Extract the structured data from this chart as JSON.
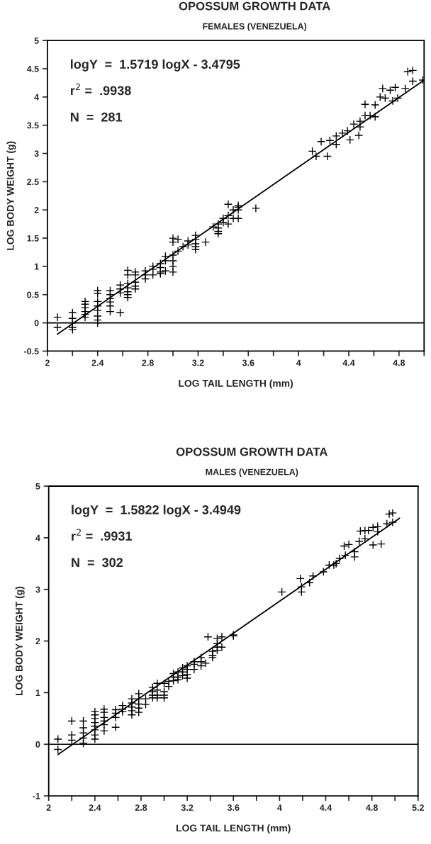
{
  "chart_data": [
    {
      "type": "scatter",
      "title": "OPOSSUM GROWTH DATA",
      "subtitle": "FEMALES (VENEZUELA)",
      "xlabel": "LOG TAIL LENGTH (mm)",
      "ylabel": "LOG BODY WEIGHT (g)",
      "annotations": [
        "logY  =  1.5719 logX - 3.4795",
        "r$^{2}$ =  .9938",
        "N  =  281"
      ],
      "xlim": [
        2,
        5.0
      ],
      "ylim": [
        -0.5,
        5
      ],
      "xticks": [
        2,
        {
          "value": 2.2,
          "label": null
        },
        2.4,
        {
          "value": 2.6,
          "label": null
        },
        2.8,
        {
          "value": 3.0,
          "label": null
        },
        3.2,
        {
          "value": 3.4,
          "label": null
        },
        3.6,
        {
          "value": 3.8,
          "label": null
        },
        4,
        {
          "value": 4.2,
          "label": null
        },
        4.4,
        {
          "value": 4.6,
          "label": null
        },
        4.8,
        {
          "value": 5.0,
          "label": null
        }
      ],
      "yticks": [
        -0.5,
        0,
        0.5,
        1,
        1.5,
        2,
        2.5,
        3,
        3.5,
        4,
        4.5,
        5
      ],
      "grid": false,
      "ref_lines": [
        {
          "axis": "y",
          "value": 0,
          "color": "#000000"
        }
      ],
      "series": [
        {
          "marker": "cross",
          "color": "#000000",
          "x": [
            2.08,
            2.08,
            2.2,
            2.2,
            2.2,
            2.2,
            2.2,
            2.3,
            2.3,
            2.3,
            2.3,
            2.3,
            2.3,
            2.4,
            2.4,
            2.4,
            2.4,
            2.4,
            2.4,
            2.4,
            2.4,
            2.5,
            2.5,
            2.5,
            2.5,
            2.5,
            2.5,
            2.58,
            2.58,
            2.58,
            2.58,
            2.64,
            2.64,
            2.64,
            2.64,
            2.64,
            2.64,
            2.64,
            2.7,
            2.7,
            2.7,
            2.7,
            2.7,
            2.78,
            2.78,
            2.78,
            2.84,
            2.84,
            2.84,
            2.9,
            2.9,
            2.9,
            2.9,
            2.94,
            2.94,
            2.94,
            3.0,
            3.0,
            3.0,
            3.0,
            3.0,
            3.0,
            3.04,
            3.04,
            3.08,
            3.12,
            3.12,
            3.18,
            3.18,
            3.18,
            3.18,
            3.18,
            3.26,
            3.32,
            3.36,
            3.36,
            3.36,
            3.36,
            3.4,
            3.4,
            3.44,
            3.44,
            3.44,
            3.48,
            3.48,
            3.52,
            3.52,
            3.52,
            3.52,
            3.66,
            4.11,
            4.14,
            4.23,
            4.18,
            4.25,
            4.3,
            4.35,
            4.41,
            4.44,
            4.49,
            4.48,
            4.53,
            4.57,
            4.61,
            4.65,
            4.67,
            4.73,
            4.77,
            4.79,
            4.85,
            4.87,
            4.91,
            4.91,
            4.75,
            4.69,
            4.3,
            4.49,
            4.39,
            4.61,
            4.53,
            4.99
          ],
          "values": [
            0.1,
            -0.08,
            0.18,
            0.08,
            0,
            -0.08,
            -0.12,
            0.38,
            0.33,
            0.27,
            0.2,
            0.15,
            0.1,
            0.57,
            0.52,
            0.38,
            0.3,
            0.22,
            0.12,
            0.05,
            0,
            0.57,
            0.5,
            0.43,
            0.37,
            0.3,
            0.2,
            0.67,
            0.6,
            0.53,
            0.18,
            0.93,
            0.85,
            0.7,
            0.62,
            0.55,
            0.5,
            0.45,
            0.9,
            0.85,
            0.72,
            0.65,
            0.6,
            0.92,
            0.85,
            0.78,
            1.0,
            0.95,
            0.85,
            1.05,
            0.98,
            0.9,
            0.87,
            1.18,
            1.1,
            0.92,
            1.5,
            1.43,
            1.2,
            1.1,
            1.0,
            0.9,
            1.48,
            1.27,
            1.35,
            1.45,
            1.38,
            1.55,
            1.48,
            1.4,
            1.35,
            1.3,
            1.43,
            1.7,
            1.75,
            1.68,
            1.62,
            1.58,
            1.85,
            1.78,
            2.1,
            1.9,
            1.75,
            2.0,
            1.85,
            2.08,
            2.05,
            2.0,
            1.85,
            2.03,
            3.04,
            2.95,
            2.95,
            3.21,
            3.23,
            3.31,
            3.36,
            3.24,
            3.52,
            3.47,
            3.32,
            3.87,
            3.67,
            3.65,
            4.0,
            4.15,
            4.12,
            4.17,
            3.98,
            4.15,
            4.45,
            4.47,
            4.28,
            3.93,
            3.98,
            3.16,
            3.57,
            3.4,
            3.86,
            3.67,
            4.3
          ]
        },
        {
          "type": "line",
          "color": "#000000",
          "x": [
            2.08,
            5.0
          ],
          "values": [
            -0.2,
            4.3
          ]
        }
      ]
    },
    {
      "type": "scatter",
      "title": "OPOSSUM GROWTH DATA",
      "subtitle": "MALES (VENEZUELA)",
      "xlabel": "LOG TAIL LENGTH (mm)",
      "ylabel": "LOG BODY WEIGHT (g)",
      "annotations": [
        "logY  =  1.5822 logX - 3.4949",
        "r$^{2}$ =  .9931",
        "N  =  302"
      ],
      "xlim": [
        2,
        5.2
      ],
      "ylim": [
        -1,
        5
      ],
      "xticks": [
        2,
        {
          "value": 2.2,
          "label": null
        },
        2.4,
        {
          "value": 2.6,
          "label": null
        },
        2.8,
        {
          "value": 3.0,
          "label": null
        },
        3.2,
        {
          "value": 3.4,
          "label": null
        },
        3.6,
        {
          "value": 3.8,
          "label": null
        },
        4,
        {
          "value": 4.2,
          "label": null
        },
        4.4,
        {
          "value": 4.6,
          "label": null
        },
        4.8,
        {
          "value": 5.0,
          "label": null
        },
        5.2
      ],
      "yticks": [
        -1,
        0,
        1,
        2,
        3,
        4,
        5
      ],
      "grid": false,
      "ref_lines": [
        {
          "axis": "y",
          "value": 0,
          "color": "#000000"
        }
      ],
      "series": [
        {
          "marker": "cross",
          "color": "#000000",
          "x": [
            2.08,
            2.08,
            2.2,
            2.2,
            2.2,
            2.3,
            2.3,
            2.3,
            2.3,
            2.3,
            2.4,
            2.4,
            2.4,
            2.4,
            2.4,
            2.4,
            2.4,
            2.4,
            2.48,
            2.48,
            2.48,
            2.48,
            2.48,
            2.48,
            2.58,
            2.58,
            2.58,
            2.58,
            2.64,
            2.64,
            2.64,
            2.72,
            2.72,
            2.72,
            2.72,
            2.72,
            2.78,
            2.78,
            2.78,
            2.78,
            2.78,
            2.84,
            2.84,
            2.9,
            2.9,
            2.9,
            2.9,
            2.94,
            2.94,
            2.94,
            2.94,
            3.0,
            3.0,
            3.0,
            3.0,
            3.04,
            3.04,
            3.08,
            3.08,
            3.08,
            3.12,
            3.12,
            3.12,
            3.16,
            3.16,
            3.16,
            3.2,
            3.2,
            3.2,
            3.2,
            3.26,
            3.26,
            3.26,
            3.32,
            3.32,
            3.32,
            3.36,
            3.38,
            3.42,
            3.42,
            3.42,
            3.46,
            3.46,
            3.46,
            3.46,
            3.5,
            3.5,
            3.6,
            3.6,
            4.02,
            4.18,
            4.19,
            4.19,
            4.26,
            4.29,
            4.38,
            4.43,
            4.49,
            4.52,
            4.57,
            4.56,
            4.6,
            4.65,
            4.65,
            4.69,
            4.7,
            4.74,
            4.77,
            4.81,
            4.81,
            4.85,
            4.88,
            4.85,
            4.93,
            4.95,
            4.98,
            4.98,
            4.74,
            4.47
          ],
          "values": [
            0.1,
            -0.1,
            0.45,
            0.18,
            0.08,
            0.45,
            0.32,
            0.22,
            0.12,
            0.02,
            0.63,
            0.57,
            0.5,
            0.42,
            0.35,
            0.28,
            0.18,
            0.1,
            0.68,
            0.62,
            0.52,
            0.45,
            0.38,
            0.26,
            0.67,
            0.6,
            0.52,
            0.33,
            0.75,
            0.68,
            0.63,
            0.88,
            0.8,
            0.72,
            0.65,
            0.57,
            0.98,
            0.88,
            0.78,
            0.7,
            0.62,
            0.88,
            0.77,
            1.1,
            1.02,
            0.95,
            0.9,
            1.18,
            1.05,
            0.95,
            0.9,
            1.18,
            1.02,
            0.95,
            0.9,
            1.22,
            1.12,
            1.37,
            1.3,
            1.23,
            1.4,
            1.3,
            1.25,
            1.48,
            1.4,
            1.33,
            1.52,
            1.45,
            1.35,
            1.28,
            1.6,
            1.55,
            1.45,
            1.68,
            1.6,
            1.52,
            1.57,
            2.08,
            1.8,
            1.72,
            1.68,
            2.05,
            1.95,
            1.88,
            1.82,
            2.08,
            1.88,
            2.1,
            2.12,
            2.95,
            3.21,
            3.05,
            2.95,
            3.13,
            3.26,
            3.34,
            3.47,
            3.5,
            3.6,
            3.66,
            3.84,
            3.87,
            3.73,
            3.63,
            3.93,
            4.13,
            3.98,
            4.14,
            4.2,
            3.86,
            4.12,
            3.88,
            4.22,
            4.27,
            4.46,
            4.48,
            4.3,
            4.14,
            3.47
          ]
        },
        {
          "type": "line",
          "color": "#000000",
          "x": [
            2.08,
            5.04
          ],
          "values": [
            -0.2,
            4.38
          ]
        }
      ]
    }
  ]
}
